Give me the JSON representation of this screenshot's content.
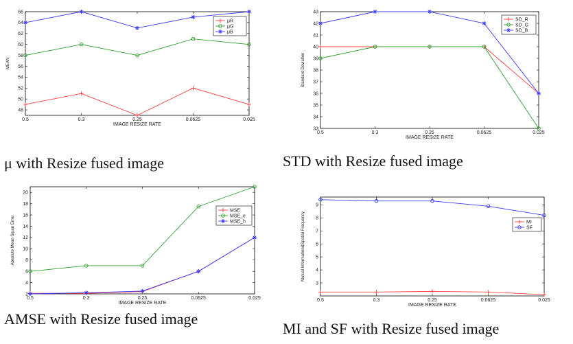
{
  "captions": [
    "μ with Resize fused image",
    "STD with Resize fused image",
    "AMSE with Resize fused image",
    "MI and SF with Resize fused image"
  ],
  "chart_data": [
    {
      "type": "line",
      "title": "",
      "xlabel": "IMAGE RESIZE RATE",
      "ylabel": "MEAN",
      "categories": [
        "0.5",
        "0.3",
        "0.25",
        "0.0625",
        "0.025"
      ],
      "ylim": [
        47,
        66
      ],
      "yticks": [
        48,
        50,
        52,
        54,
        56,
        58,
        60,
        62,
        64,
        66
      ],
      "legend_position": "top-right",
      "series": [
        {
          "name": "μR",
          "values": [
            49,
            51,
            47,
            52,
            49
          ],
          "color": "#ff4040",
          "marker": "plus"
        },
        {
          "name": "μG",
          "values": [
            58,
            60,
            58,
            61,
            60
          ],
          "color": "#30a030",
          "marker": "circle"
        },
        {
          "name": "μB",
          "values": [
            64,
            66,
            63,
            65,
            66
          ],
          "color": "#3838ff",
          "marker": "star"
        }
      ]
    },
    {
      "type": "line",
      "title": "",
      "xlabel": "IMAGE RESIZE RATE",
      "ylabel": "Standard Deviation",
      "categories": [
        "0.5",
        "0.3",
        "0.25",
        "0.0625",
        "0.025"
      ],
      "ylim": [
        33,
        43
      ],
      "yticks": [
        33,
        34,
        35,
        36,
        37,
        38,
        39,
        40,
        41,
        42,
        43
      ],
      "legend_position": "top-right",
      "series": [
        {
          "name": "SD_R",
          "values": [
            40,
            40,
            40,
            40,
            36
          ],
          "color": "#ff4040",
          "marker": "plus"
        },
        {
          "name": "SD_G",
          "values": [
            39,
            40,
            40,
            40,
            33
          ],
          "color": "#30a030",
          "marker": "circle"
        },
        {
          "name": "SD_B",
          "values": [
            42,
            43,
            43,
            42,
            36
          ],
          "color": "#3838ff",
          "marker": "star"
        }
      ]
    },
    {
      "type": "line",
      "title": "",
      "xlabel": "IMAGE RESIZE RATE",
      "ylabel": "Absolute Mean Squar Error",
      "categories": [
        "0.5",
        "0.3",
        "0.25",
        "0.0625",
        "0.025"
      ],
      "ylim": [
        2,
        21
      ],
      "yticks": [
        2,
        4,
        6,
        8,
        10,
        12,
        14,
        16,
        18,
        20
      ],
      "legend_position": "top-right",
      "series": [
        {
          "name": "MSE",
          "values": [
            2.1,
            2.1,
            2.4,
            6,
            12
          ],
          "color": "#ff4040",
          "marker": "plus"
        },
        {
          "name": "MSE_e",
          "values": [
            6,
            7,
            7,
            17.5,
            21
          ],
          "color": "#30a030",
          "marker": "circle"
        },
        {
          "name": "MSE_h",
          "values": [
            2.0,
            2.2,
            2.5,
            6,
            12
          ],
          "color": "#3838ff",
          "marker": "star"
        }
      ]
    },
    {
      "type": "line",
      "title": "",
      "xlabel": "IMAGE RESIZE RATE",
      "ylabel": "Mutual Information&Spatial Frequency",
      "categories": [
        "0.5",
        "0.3",
        "0.25",
        "0.0625",
        "0.025"
      ],
      "ylim": [
        2,
        9.6
      ],
      "yticks": [
        3,
        4,
        5,
        6,
        7,
        8,
        9
      ],
      "legend_position": "center-right",
      "series": [
        {
          "name": "MI",
          "values": [
            2.3,
            2.3,
            2.35,
            2.3,
            2.1
          ],
          "color": "#ff4040",
          "marker": "plus"
        },
        {
          "name": "SF",
          "values": [
            9.4,
            9.3,
            9.3,
            8.9,
            8.2
          ],
          "color": "#3838ff",
          "marker": "circle"
        }
      ]
    }
  ]
}
